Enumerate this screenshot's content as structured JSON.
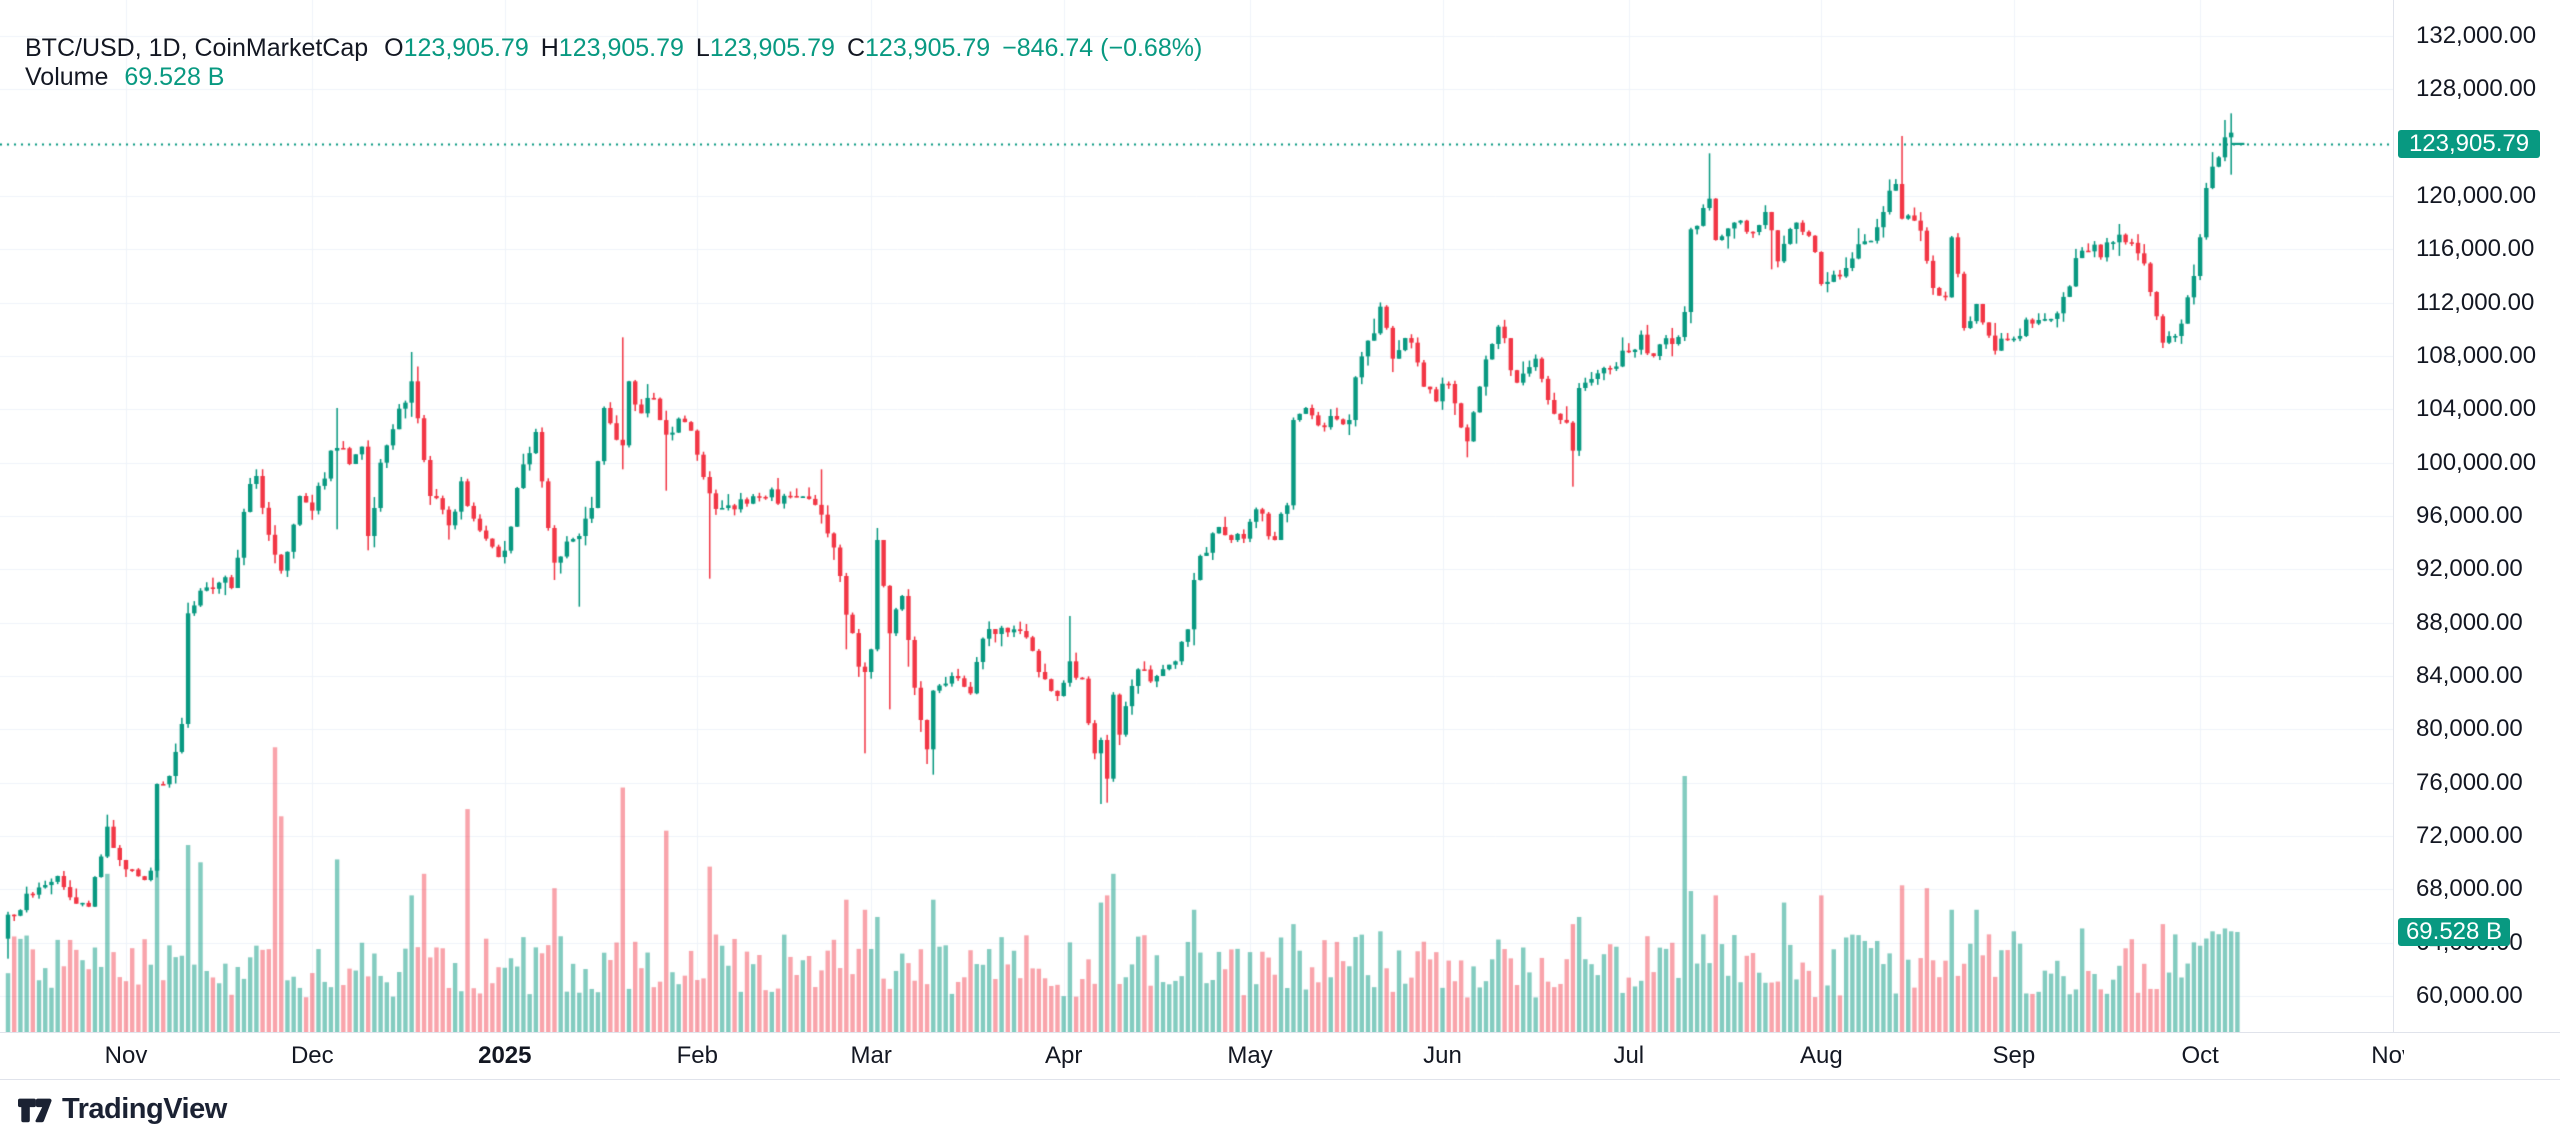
{
  "legend": {
    "title": "BTC/USD, 1D, CoinMarketCap",
    "o_label": "O",
    "o": "123,905.79",
    "h_label": "H",
    "h": "123,905.79",
    "l_label": "L",
    "l": "123,905.79",
    "c_label": "C",
    "c": "123,905.79",
    "change": "−846.74 (−0.68%)",
    "volume_label": "Volume",
    "volume": "69.528 B"
  },
  "price_axis": {
    "ticks": [
      {
        "label": "132,000.00",
        "value": 132000
      },
      {
        "label": "128,000.00",
        "value": 128000
      },
      {
        "label": "120,000.00",
        "value": 120000
      },
      {
        "label": "116,000.00",
        "value": 116000
      },
      {
        "label": "112,000.00",
        "value": 112000
      },
      {
        "label": "108,000.00",
        "value": 108000
      },
      {
        "label": "104,000.00",
        "value": 104000
      },
      {
        "label": "100,000.00",
        "value": 100000
      },
      {
        "label": "96,000.00",
        "value": 96000
      },
      {
        "label": "92,000.00",
        "value": 92000
      },
      {
        "label": "88,000.00",
        "value": 88000
      },
      {
        "label": "84,000.00",
        "value": 84000
      },
      {
        "label": "80,000.00",
        "value": 80000
      },
      {
        "label": "76,000.00",
        "value": 76000
      },
      {
        "label": "72,000.00",
        "value": 72000
      },
      {
        "label": "68,000.00",
        "value": 68000
      },
      {
        "label": "64,000.00",
        "value": 64000
      },
      {
        "label": "60,000.00",
        "value": 60000
      }
    ],
    "last_price_badge": {
      "label": "123,905.79",
      "value": 123905.79
    },
    "volume_badge": {
      "label": "69.528 B",
      "value_b": 69.528
    }
  },
  "time_axis": {
    "labels": [
      {
        "text": "Nov",
        "day": 19
      },
      {
        "text": "Dec",
        "day": 49
      },
      {
        "text": "2025",
        "day": 80,
        "bold": true
      },
      {
        "text": "Feb",
        "day": 111
      },
      {
        "text": "Mar",
        "day": 139
      },
      {
        "text": "Apr",
        "day": 170
      },
      {
        "text": "May",
        "day": 200
      },
      {
        "text": "Jun",
        "day": 231
      },
      {
        "text": "Jul",
        "day": 261
      },
      {
        "text": "Aug",
        "day": 292
      },
      {
        "text": "Sep",
        "day": 323
      },
      {
        "text": "Oct",
        "day": 353
      },
      {
        "text": "Nov",
        "day": 384
      }
    ]
  },
  "footer": {
    "logo_text": "TradingView"
  },
  "colors": {
    "up": "#089981",
    "down": "#f23645",
    "vol_up": "rgba(8,153,129,0.5)",
    "vol_down": "rgba(242,54,69,0.45)",
    "accent": "#089981",
    "grid": "#f0f3fa",
    "axis_border": "#e0e3eb",
    "text": "#131722",
    "badge_text": "#ffffff"
  },
  "chart_data": {
    "type": "candlestick+volume",
    "title": "BTC/USD, 1D, CoinMarketCap",
    "symbol": "BTC/USD",
    "interval": "1D",
    "source": "CoinMarketCap",
    "legend_position": "top-left",
    "grid": true,
    "y_axis": {
      "min": 60000,
      "max": 132000,
      "tick_step": 4000,
      "side": "right"
    },
    "x_axis": {
      "start": "Oct 2024",
      "end": "Oct 2025",
      "unit": "day"
    },
    "last_quote": {
      "open": 123905.79,
      "high": 123905.79,
      "low": 123905.79,
      "close": 123905.79,
      "change": -846.74,
      "change_pct": -0.68,
      "volume_billions": 69.528,
      "prev_close": 124752.53
    },
    "candle_count": 360,
    "first_open_k": 64.3,
    "noise_pct": 0.014,
    "wick_pct": 0.012,
    "price_anchors_k": [
      [
        0,
        66.1
      ],
      [
        4,
        67.6
      ],
      [
        8,
        69.0
      ],
      [
        10,
        67.4
      ],
      [
        13,
        66.7
      ],
      [
        16,
        72.7
      ],
      [
        18,
        70.2
      ],
      [
        19,
        69.5
      ],
      [
        22,
        68.7
      ],
      [
        23,
        69.4
      ],
      [
        24,
        75.9
      ],
      [
        26,
        76.5
      ],
      [
        28,
        80.4
      ],
      [
        29,
        88.7
      ],
      [
        31,
        90.4
      ],
      [
        34,
        91.0
      ],
      [
        36,
        90.6
      ],
      [
        39,
        98.4
      ],
      [
        40,
        99.0
      ],
      [
        43,
        93.1
      ],
      [
        44,
        91.9
      ],
      [
        47,
        97.5
      ],
      [
        49,
        96.4
      ],
      [
        52,
        100.9
      ],
      [
        53,
        101.1
      ],
      [
        55,
        99.9
      ],
      [
        57,
        101.2
      ],
      [
        58,
        94.5
      ],
      [
        59,
        96.6
      ],
      [
        60,
        100.0
      ],
      [
        64,
        104.5
      ],
      [
        65,
        106.1
      ],
      [
        67,
        100.2
      ],
      [
        68,
        97.5
      ],
      [
        71,
        95.3
      ],
      [
        73,
        98.6
      ],
      [
        75,
        95.8
      ],
      [
        78,
        93.7
      ],
      [
        80,
        93.4
      ],
      [
        82,
        98.1
      ],
      [
        85,
        102.3
      ],
      [
        87,
        95.1
      ],
      [
        88,
        92.5
      ],
      [
        92,
        94.5
      ],
      [
        94,
        96.6
      ],
      [
        96,
        104.1
      ],
      [
        99,
        101.3
      ],
      [
        100,
        106.1
      ],
      [
        102,
        103.7
      ],
      [
        104,
        104.8
      ],
      [
        106,
        102.1
      ],
      [
        108,
        103.3
      ],
      [
        110,
        102.4
      ],
      [
        111,
        100.6
      ],
      [
        113,
        97.7
      ],
      [
        115,
        96.6
      ],
      [
        117,
        96.5
      ],
      [
        122,
        97.4
      ],
      [
        126,
        97.5
      ],
      [
        131,
        96.1
      ],
      [
        134,
        91.5
      ],
      [
        135,
        88.6
      ],
      [
        137,
        84.7
      ],
      [
        138,
        84.3
      ],
      [
        139,
        86.0
      ],
      [
        140,
        94.2
      ],
      [
        142,
        87.2
      ],
      [
        144,
        90.0
      ],
      [
        145,
        86.7
      ],
      [
        147,
        80.7
      ],
      [
        148,
        78.5
      ],
      [
        149,
        82.9
      ],
      [
        152,
        84.0
      ],
      [
        155,
        82.7
      ],
      [
        157,
        86.8
      ],
      [
        162,
        87.5
      ],
      [
        164,
        86.9
      ],
      [
        166,
        84.3
      ],
      [
        169,
        82.5
      ],
      [
        171,
        85.1
      ],
      [
        173,
        83.8
      ],
      [
        175,
        78.2
      ],
      [
        176,
        79.2
      ],
      [
        177,
        76.3
      ],
      [
        178,
        82.6
      ],
      [
        179,
        79.6
      ],
      [
        182,
        84.5
      ],
      [
        185,
        84.0
      ],
      [
        188,
        85.1
      ],
      [
        190,
        87.5
      ],
      [
        191,
        91.2
      ],
      [
        194,
        94.7
      ],
      [
        197,
        94.2
      ],
      [
        199,
        94.3
      ],
      [
        201,
        96.5
      ],
      [
        204,
        94.2
      ],
      [
        206,
        96.8
      ],
      [
        207,
        103.2
      ],
      [
        209,
        104.1
      ],
      [
        211,
        102.8
      ],
      [
        213,
        103.5
      ],
      [
        216,
        103.2
      ],
      [
        217,
        106.4
      ],
      [
        220,
        109.7
      ],
      [
        221,
        111.7
      ],
      [
        223,
        107.8
      ],
      [
        226,
        109.0
      ],
      [
        228,
        105.7
      ],
      [
        230,
        104.6
      ],
      [
        232,
        105.9
      ],
      [
        235,
        101.6
      ],
      [
        237,
        105.7
      ],
      [
        239,
        108.9
      ],
      [
        240,
        110.2
      ],
      [
        243,
        106.0
      ],
      [
        246,
        107.8
      ],
      [
        248,
        104.7
      ],
      [
        251,
        103.0
      ],
      [
        252,
        100.9
      ],
      [
        253,
        105.6
      ],
      [
        254,
        106.0
      ],
      [
        257,
        107.1
      ],
      [
        260,
        108.4
      ],
      [
        263,
        109.6
      ],
      [
        265,
        108.0
      ],
      [
        268,
        108.9
      ],
      [
        270,
        111.3
      ],
      [
        271,
        117.5
      ],
      [
        273,
        119.1
      ],
      [
        274,
        119.8
      ],
      [
        275,
        116.7
      ],
      [
        278,
        118.0
      ],
      [
        281,
        117.3
      ],
      [
        283,
        118.8
      ],
      [
        285,
        115.1
      ],
      [
        288,
        118.0
      ],
      [
        291,
        115.8
      ],
      [
        292,
        113.4
      ],
      [
        296,
        114.6
      ],
      [
        299,
        116.6
      ],
      [
        302,
        118.8
      ],
      [
        304,
        120.9
      ],
      [
        305,
        118.3
      ],
      [
        308,
        117.4
      ],
      [
        310,
        113.1
      ],
      [
        312,
        112.4
      ],
      [
        313,
        116.9
      ],
      [
        315,
        110.1
      ],
      [
        317,
        111.9
      ],
      [
        320,
        108.4
      ],
      [
        322,
        109.2
      ],
      [
        323,
        109.3
      ],
      [
        327,
        110.7
      ],
      [
        330,
        111.2
      ],
      [
        334,
        115.9
      ],
      [
        337,
        115.4
      ],
      [
        340,
        117.1
      ],
      [
        343,
        115.7
      ],
      [
        345,
        112.8
      ],
      [
        347,
        109.0
      ],
      [
        349,
        109.5
      ],
      [
        351,
        112.4
      ],
      [
        352,
        114.0
      ],
      [
        353,
        116.9
      ],
      [
        354,
        120.6
      ],
      [
        355,
        122.2
      ],
      [
        356,
        122.9
      ],
      [
        357,
        124.4
      ],
      [
        358,
        124.752
      ],
      [
        359,
        123.90579
      ]
    ],
    "wick_overrides_k": {
      "0": [
        null,
        62.8
      ],
      "16": [
        73.6,
        null
      ],
      "29": [
        89.5,
        null
      ],
      "40": [
        99.5,
        null
      ],
      "53": [
        104.1,
        95.0
      ],
      "58": [
        null,
        94.2
      ],
      "65": [
        108.3,
        null
      ],
      "88": [
        null,
        91.2
      ],
      "92": [
        null,
        89.2
      ],
      "99": [
        109.4,
        99.5
      ],
      "106": [
        null,
        97.9
      ],
      "113": [
        null,
        91.3
      ],
      "131": [
        99.5,
        null
      ],
      "135": [
        null,
        86.0
      ],
      "138": [
        null,
        78.2
      ],
      "140": [
        95.1,
        null
      ],
      "142": [
        null,
        81.5
      ],
      "145": [
        null,
        84.7
      ],
      "148": [
        null,
        77.4
      ],
      "149": [
        null,
        76.6
      ],
      "171": [
        88.5,
        null
      ],
      "176": [
        null,
        74.4
      ],
      "177": [
        null,
        74.5
      ],
      "191": [
        null,
        86.3
      ],
      "220": [
        110.8,
        null
      ],
      "221": [
        111.9,
        null
      ],
      "235": [
        null,
        100.4
      ],
      "252": [
        null,
        98.2
      ],
      "274": [
        123.2,
        null
      ],
      "284": [
        null,
        114.5
      ],
      "305": [
        124.5,
        null
      ],
      "313": [
        117.0,
        null
      ],
      "340": [
        117.9,
        null
      ],
      "347": [
        null,
        108.6
      ],
      "357": [
        125.7,
        null
      ],
      "358": [
        126.2,
        121.6
      ]
    },
    "volume": {
      "unit": "billions",
      "base_min_b": 24,
      "base_max_b": 68,
      "last_b": 69.528,
      "spikes_b": {
        "16": 110,
        "24": 120,
        "29": 130,
        "31": 118,
        "43": 198,
        "44": 150,
        "53": 120,
        "65": 95,
        "67": 110,
        "74": 155,
        "88": 100,
        "99": 170,
        "106": 140,
        "113": 115,
        "135": 92,
        "138": 85,
        "140": 80,
        "149": 92,
        "176": 90,
        "177": 95,
        "178": 110,
        "191": 85,
        "207": 75,
        "221": 70,
        "252": 75,
        "253": 80,
        "270": 178,
        "271": 98,
        "275": 95,
        "286": 90,
        "292": 95,
        "305": 102,
        "309": 100,
        "313": 85,
        "317": 85,
        "323": 70,
        "334": 72,
        "347": 75,
        "353": 60,
        "354": 65,
        "355": 70,
        "356": 68,
        "357": 72,
        "358": 70,
        "359": 69.528
      }
    },
    "price_line": {
      "value": 123905.79,
      "style": "dotted",
      "color": "#089981"
    }
  }
}
